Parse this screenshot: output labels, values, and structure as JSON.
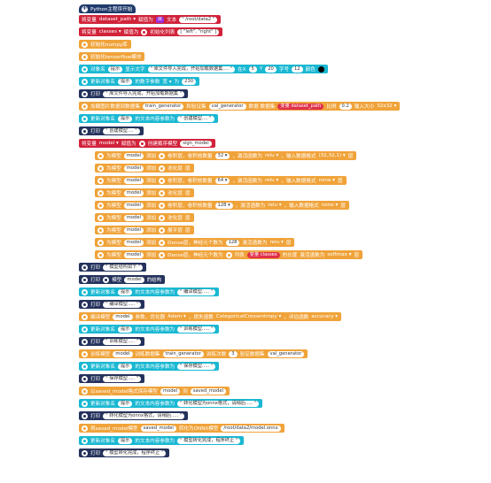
{
  "blocks": [
    {
      "top": 5,
      "left": 89,
      "kind": "hat",
      "icon": "plus-icon",
      "parts": [
        {
          "t": "label",
          "v": "Python主程序开始"
        }
      ]
    },
    {
      "top": 17,
      "left": 89,
      "kind": "red",
      "parts": [
        {
          "t": "label",
          "v": "将变量"
        },
        {
          "t": "label",
          "v": "dataset_path ▾"
        },
        {
          "t": "label",
          "v": "赋值为"
        },
        {
          "t": "pslot",
          "v": "目"
        },
        {
          "t": "label",
          "v": "文本"
        },
        {
          "t": "slot",
          "v": "\" /root/data2 \""
        }
      ]
    },
    {
      "top": 31,
      "left": 89,
      "kind": "red",
      "parts": [
        {
          "t": "label",
          "v": "将变量"
        },
        {
          "t": "label",
          "v": "classes ▾"
        },
        {
          "t": "label",
          "v": "赋值为"
        },
        {
          "t": "icon",
          "v": "list-icon"
        },
        {
          "t": "label",
          "v": "初始化列表"
        },
        {
          "t": "slot",
          "v": "[ \"left\", \"right\" ]"
        }
      ]
    },
    {
      "top": 45,
      "left": 89,
      "kind": "ora",
      "icon": "gear-icon",
      "parts": [
        {
          "t": "label",
          "v": "初始化numpy库"
        }
      ]
    },
    {
      "top": 59,
      "left": 89,
      "kind": "ora",
      "icon": "gear-icon",
      "parts": [
        {
          "t": "label",
          "v": "初始化tensorflow模块"
        }
      ]
    },
    {
      "top": 73,
      "left": 89,
      "kind": "cya",
      "icon": "gear-icon",
      "parts": [
        {
          "t": "label",
          "v": "对象名"
        },
        {
          "t": "slot",
          "v": "提示"
        },
        {
          "t": "label",
          "v": "显示文字"
        },
        {
          "t": "slot",
          "v": "\" 库文件导入完成，开始加载数据集.... \""
        },
        {
          "t": "label",
          "v": "在X"
        },
        {
          "t": "slot",
          "v": "5"
        },
        {
          "t": "label",
          "v": "Y"
        },
        {
          "t": "slot",
          "v": "20"
        },
        {
          "t": "label",
          "v": "字号"
        },
        {
          "t": "slot",
          "v": "12"
        },
        {
          "t": "label",
          "v": "颜色"
        },
        {
          "t": "dot",
          "v": ""
        }
      ]
    },
    {
      "top": 87,
      "left": 89,
      "kind": "cya",
      "icon": "gear-icon",
      "parts": [
        {
          "t": "label",
          "v": "更新对象名"
        },
        {
          "t": "slot",
          "v": "提示"
        },
        {
          "t": "label",
          "v": "的数字参数"
        },
        {
          "t": "label",
          "v": "宽 ▾"
        },
        {
          "t": "label",
          "v": "为"
        },
        {
          "t": "slot",
          "v": "230"
        }
      ]
    },
    {
      "top": 101,
      "left": 89,
      "kind": "nav",
      "icon": "play-icon",
      "parts": [
        {
          "t": "label",
          "v": "打印"
        },
        {
          "t": "slot",
          "v": "\" 库文件导入完成，开始加载数据集 \""
        }
      ]
    },
    {
      "top": 115,
      "left": 89,
      "kind": "ora",
      "icon": "gear-icon",
      "parts": [
        {
          "t": "label",
          "v": "加载图片数据到数据集"
        },
        {
          "t": "slot",
          "v": "train_generator"
        },
        {
          "t": "label",
          "v": "和验证集"
        },
        {
          "t": "slot",
          "v": "val_generator"
        },
        {
          "t": "label",
          "v": "数据 数据集"
        },
        {
          "t": "rslot",
          "v": "变量 dataset_path"
        },
        {
          "t": "label",
          "v": "比例"
        },
        {
          "t": "slot",
          "v": "0.2"
        },
        {
          "t": "label",
          "v": "输入大小"
        },
        {
          "t": "label",
          "v": "32x32 ▾"
        }
      ]
    },
    {
      "top": 129,
      "left": 89,
      "kind": "cya",
      "icon": "gear-icon",
      "parts": [
        {
          "t": "label",
          "v": "更新对象名"
        },
        {
          "t": "slot",
          "v": "提示"
        },
        {
          "t": "label",
          "v": "的文本内容参数为"
        },
        {
          "t": "slot",
          "v": "\" 创建模型.... \""
        }
      ]
    },
    {
      "top": 143,
      "left": 89,
      "kind": "nav",
      "icon": "play-icon",
      "parts": [
        {
          "t": "label",
          "v": "打印"
        },
        {
          "t": "slot",
          "v": "\" 创建模型.... \""
        }
      ]
    },
    {
      "top": 157,
      "left": 89,
      "kind": "red",
      "parts": [
        {
          "t": "label",
          "v": "将变量"
        },
        {
          "t": "label",
          "v": "model ▾"
        },
        {
          "t": "label",
          "v": "赋值为"
        },
        {
          "t": "icon",
          "v": "gear-icon"
        },
        {
          "t": "label",
          "v": "创建顺序模型"
        },
        {
          "t": "slot",
          "v": "sign_model"
        }
      ]
    },
    {
      "top": 171,
      "left": 107,
      "kind": "ora",
      "icon": "gear-icon",
      "parts": [
        {
          "t": "label",
          "v": "为模型"
        },
        {
          "t": "slot",
          "v": "model"
        },
        {
          "t": "label",
          "v": "添加"
        },
        {
          "t": "icon",
          "v": "gear-icon"
        },
        {
          "t": "label",
          "v": "卷积层，卷积核数量"
        },
        {
          "t": "slot",
          "v": "32 ▾"
        },
        {
          "t": "label",
          "v": "，激活函数为"
        },
        {
          "t": "label",
          "v": "relu ▾"
        },
        {
          "t": "label",
          "v": "，输入数据格式"
        },
        {
          "t": "label",
          "v": "(32,32,1) ▾"
        },
        {
          "t": "label",
          "v": "层"
        }
      ]
    },
    {
      "top": 185,
      "left": 107,
      "kind": "ora",
      "icon": "gear-icon",
      "parts": [
        {
          "t": "label",
          "v": "为模型"
        },
        {
          "t": "slot",
          "v": "model"
        },
        {
          "t": "label",
          "v": "添加"
        },
        {
          "t": "icon",
          "v": "gear-icon"
        },
        {
          "t": "label",
          "v": "池化层"
        },
        {
          "t": "label",
          "v": "层"
        }
      ]
    },
    {
      "top": 199,
      "left": 107,
      "kind": "ora",
      "icon": "gear-icon",
      "parts": [
        {
          "t": "label",
          "v": "为模型"
        },
        {
          "t": "slot",
          "v": "model"
        },
        {
          "t": "label",
          "v": "添加"
        },
        {
          "t": "icon",
          "v": "gear-icon"
        },
        {
          "t": "label",
          "v": "卷积层，卷积核数量"
        },
        {
          "t": "slot",
          "v": "64 ▾"
        },
        {
          "t": "label",
          "v": "，激活函数为"
        },
        {
          "t": "label",
          "v": "relu ▾"
        },
        {
          "t": "label",
          "v": "，输入数据格式"
        },
        {
          "t": "label",
          "v": "none ▾"
        },
        {
          "t": "label",
          "v": "层"
        }
      ]
    },
    {
      "top": 213,
      "left": 107,
      "kind": "ora",
      "icon": "gear-icon",
      "parts": [
        {
          "t": "label",
          "v": "为模型"
        },
        {
          "t": "slot",
          "v": "model"
        },
        {
          "t": "label",
          "v": "添加"
        },
        {
          "t": "icon",
          "v": "gear-icon"
        },
        {
          "t": "label",
          "v": "池化层"
        },
        {
          "t": "label",
          "v": "层"
        }
      ]
    },
    {
      "top": 227,
      "left": 107,
      "kind": "ora",
      "icon": "gear-icon",
      "parts": [
        {
          "t": "label",
          "v": "为模型"
        },
        {
          "t": "slot",
          "v": "model"
        },
        {
          "t": "label",
          "v": "添加"
        },
        {
          "t": "icon",
          "v": "gear-icon"
        },
        {
          "t": "label",
          "v": "卷积层，卷积核数量"
        },
        {
          "t": "slot",
          "v": "128 ▾"
        },
        {
          "t": "label",
          "v": "，激活函数为"
        },
        {
          "t": "label",
          "v": "relu ▾"
        },
        {
          "t": "label",
          "v": "，输入数据格式"
        },
        {
          "t": "label",
          "v": "none ▾"
        },
        {
          "t": "label",
          "v": "层"
        }
      ]
    },
    {
      "top": 241,
      "left": 107,
      "kind": "ora",
      "icon": "gear-icon",
      "parts": [
        {
          "t": "label",
          "v": "为模型"
        },
        {
          "t": "slot",
          "v": "model"
        },
        {
          "t": "label",
          "v": "添加"
        },
        {
          "t": "icon",
          "v": "gear-icon"
        },
        {
          "t": "label",
          "v": "池化层"
        },
        {
          "t": "label",
          "v": "层"
        }
      ]
    },
    {
      "top": 255,
      "left": 107,
      "kind": "ora",
      "icon": "gear-icon",
      "parts": [
        {
          "t": "label",
          "v": "为模型"
        },
        {
          "t": "slot",
          "v": "model"
        },
        {
          "t": "label",
          "v": "添加"
        },
        {
          "t": "icon",
          "v": "gear-icon"
        },
        {
          "t": "label",
          "v": "展平层"
        },
        {
          "t": "label",
          "v": "层"
        }
      ]
    },
    {
      "top": 269,
      "left": 107,
      "kind": "ora",
      "icon": "gear-icon",
      "parts": [
        {
          "t": "label",
          "v": "为模型"
        },
        {
          "t": "slot",
          "v": "model"
        },
        {
          "t": "label",
          "v": "添加"
        },
        {
          "t": "icon",
          "v": "gear-icon"
        },
        {
          "t": "label",
          "v": "Dense层，神经元个数为"
        },
        {
          "t": "slot",
          "v": "128"
        },
        {
          "t": "label",
          "v": "激活函数为"
        },
        {
          "t": "label",
          "v": "relu ▾"
        },
        {
          "t": "label",
          "v": "层"
        }
      ]
    },
    {
      "top": 283,
      "left": 107,
      "kind": "ora",
      "icon": "gear-icon",
      "parts": [
        {
          "t": "label",
          "v": "为模型"
        },
        {
          "t": "slot",
          "v": "model"
        },
        {
          "t": "label",
          "v": "添加"
        },
        {
          "t": "icon",
          "v": "gear-icon"
        },
        {
          "t": "label",
          "v": "Dense层，神经元个数为"
        },
        {
          "t": "icon",
          "v": "list-icon"
        },
        {
          "t": "label",
          "v": "列表"
        },
        {
          "t": "rslot",
          "v": "变量 classes"
        },
        {
          "t": "label",
          "v": "的长度"
        },
        {
          "t": "label",
          "v": "激活函数为"
        },
        {
          "t": "label",
          "v": "softmax ▾"
        },
        {
          "t": "label",
          "v": "层"
        }
      ]
    },
    {
      "top": 297,
      "left": 89,
      "kind": "nav",
      "icon": "play-icon",
      "parts": [
        {
          "t": "label",
          "v": "打印"
        },
        {
          "t": "slot",
          "v": "\" 模型结构如下 \""
        }
      ]
    },
    {
      "top": 311,
      "left": 89,
      "kind": "nav",
      "icon": "play-icon",
      "parts": [
        {
          "t": "label",
          "v": "打印"
        },
        {
          "t": "icon",
          "v": "gear-icon"
        },
        {
          "t": "label",
          "v": "模型"
        },
        {
          "t": "slot",
          "v": "model"
        },
        {
          "t": "label",
          "v": "的结构"
        }
      ]
    },
    {
      "top": 325,
      "left": 89,
      "kind": "cya",
      "icon": "gear-icon",
      "parts": [
        {
          "t": "label",
          "v": "更新对象名"
        },
        {
          "t": "slot",
          "v": "提示"
        },
        {
          "t": "label",
          "v": "的文本内容参数为"
        },
        {
          "t": "slot",
          "v": "\" 编译模型..... \""
        }
      ]
    },
    {
      "top": 339,
      "left": 89,
      "kind": "nav",
      "icon": "play-icon",
      "parts": [
        {
          "t": "label",
          "v": "打印"
        },
        {
          "t": "slot",
          "v": "\" 编译模型..... \""
        }
      ]
    },
    {
      "top": 353,
      "left": 89,
      "kind": "ora",
      "icon": "gear-icon",
      "parts": [
        {
          "t": "label",
          "v": "编译模型"
        },
        {
          "t": "slot",
          "v": "model"
        },
        {
          "t": "label",
          "v": "参数，优化器"
        },
        {
          "t": "label",
          "v": "Adam ▾"
        },
        {
          "t": "label",
          "v": "，损失函数"
        },
        {
          "t": "label",
          "v": "CategoricalCrossentropy ▾"
        },
        {
          "t": "label",
          "v": "，评估函数"
        },
        {
          "t": "label",
          "v": "accuracy ▾"
        }
      ]
    },
    {
      "top": 367,
      "left": 89,
      "kind": "cya",
      "icon": "gear-icon",
      "parts": [
        {
          "t": "label",
          "v": "更新对象名"
        },
        {
          "t": "slot",
          "v": "提示"
        },
        {
          "t": "label",
          "v": "的文本内容参数为"
        },
        {
          "t": "slot",
          "v": "\" 训练模型..... \""
        }
      ]
    },
    {
      "top": 381,
      "left": 89,
      "kind": "nav",
      "icon": "play-icon",
      "parts": [
        {
          "t": "label",
          "v": "打印"
        },
        {
          "t": "slot",
          "v": "\" 训练模型..... \""
        }
      ]
    },
    {
      "top": 395,
      "left": 89,
      "kind": "ora",
      "icon": "gear-icon",
      "parts": [
        {
          "t": "label",
          "v": "训练模型"
        },
        {
          "t": "slot",
          "v": "model"
        },
        {
          "t": "label",
          "v": "训练数据集"
        },
        {
          "t": "slot",
          "v": "train_generator"
        },
        {
          "t": "label",
          "v": "训练次数"
        },
        {
          "t": "slot",
          "v": "3"
        },
        {
          "t": "label",
          "v": "验证数据集"
        },
        {
          "t": "slot",
          "v": "val_generator"
        }
      ]
    },
    {
      "top": 409,
      "left": 89,
      "kind": "cya",
      "icon": "gear-icon",
      "parts": [
        {
          "t": "label",
          "v": "更新对象名"
        },
        {
          "t": "slot",
          "v": "提示"
        },
        {
          "t": "label",
          "v": "的文本内容参数为"
        },
        {
          "t": "slot",
          "v": "\" 保存模型..... \""
        }
      ]
    },
    {
      "top": 423,
      "left": 89,
      "kind": "nav",
      "icon": "play-icon",
      "parts": [
        {
          "t": "label",
          "v": "打印"
        },
        {
          "t": "slot",
          "v": "\" 保存模型..... \""
        }
      ]
    },
    {
      "top": 437,
      "left": 89,
      "kind": "ora",
      "icon": "gear-icon",
      "parts": [
        {
          "t": "label",
          "v": "以saved_model格式保存模型"
        },
        {
          "t": "slot",
          "v": "model"
        },
        {
          "t": "label",
          "v": "到"
        },
        {
          "t": "slot",
          "v": "saved_model"
        }
      ]
    },
    {
      "top": 451,
      "left": 89,
      "kind": "cya",
      "icon": "gear-icon",
      "parts": [
        {
          "t": "label",
          "v": "更新对象名"
        },
        {
          "t": "slot",
          "v": "提示"
        },
        {
          "t": "label",
          "v": "的文本内容参数为"
        },
        {
          "t": "slot",
          "v": "\" 转化模型为onnx格式，请稍后..... \""
        }
      ]
    },
    {
      "top": 465,
      "left": 89,
      "kind": "nav",
      "icon": "play-icon",
      "parts": [
        {
          "t": "label",
          "v": "打印"
        },
        {
          "t": "slot",
          "v": "\" 转化模型为onnx格式，请稍后..... \""
        }
      ]
    },
    {
      "top": 479,
      "left": 89,
      "kind": "ora",
      "icon": "gear-icon",
      "parts": [
        {
          "t": "label",
          "v": "将saved_model模型"
        },
        {
          "t": "slot",
          "v": "saved_model"
        },
        {
          "t": "label",
          "v": "转化为ONNX模型"
        },
        {
          "t": "slot",
          "v": "/root/data2/model.onnx"
        }
      ]
    },
    {
      "top": 493,
      "left": 89,
      "kind": "cya",
      "icon": "gear-icon",
      "parts": [
        {
          "t": "label",
          "v": "更新对象名"
        },
        {
          "t": "slot",
          "v": "提示"
        },
        {
          "t": "label",
          "v": "的文本内容参数为"
        },
        {
          "t": "slot",
          "v": "\" 模型转化完成，程序终止 \""
        }
      ]
    },
    {
      "top": 507,
      "left": 89,
      "kind": "nav",
      "icon": "play-icon",
      "parts": [
        {
          "t": "label",
          "v": "打印"
        },
        {
          "t": "slot",
          "v": "\" 模型转化完成，程序终止 \""
        }
      ]
    }
  ]
}
